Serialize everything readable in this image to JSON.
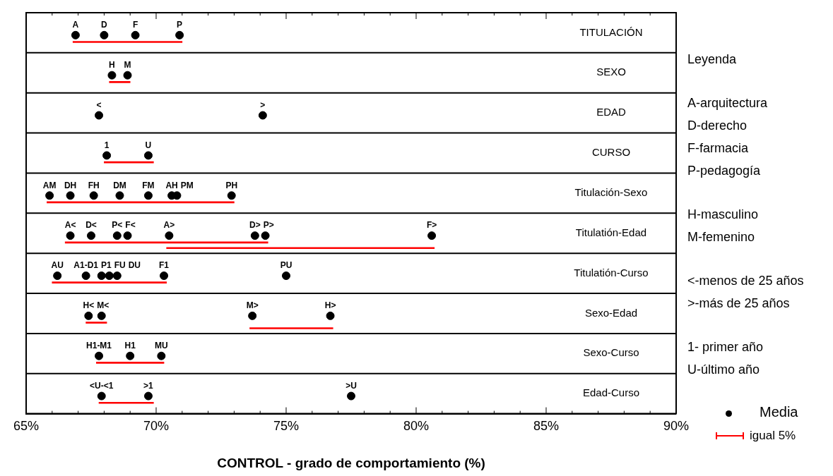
{
  "chart_data": {
    "type": "scatter",
    "orientation": "horizontal",
    "xlabel": "CONTROL - grado de comportamiento (%)",
    "legend_title": "Leyenda",
    "legend": "bottom right",
    "grid": false,
    "categories": [
      "TITULACIÓN",
      "SEXO",
      "EDAD",
      "CURSO",
      "Titulación-Sexo",
      "Titulatión-Edad",
      "Titulatión-Curso",
      "Sexo-Edad",
      "Sexo-Curso",
      "Edad-Curso"
    ],
    "xlim": [
      65,
      90
    ],
    "xticks": [
      {
        "value": 65,
        "label": "65%"
      },
      {
        "value": 66,
        "label": null
      },
      {
        "value": 67,
        "label": null
      },
      {
        "value": 68,
        "label": null
      },
      {
        "value": 69,
        "label": null
      },
      {
        "value": 70,
        "label": "70%"
      },
      {
        "value": 71,
        "label": null
      },
      {
        "value": 72,
        "label": null
      },
      {
        "value": 73,
        "label": null
      },
      {
        "value": 74,
        "label": null
      },
      {
        "value": 75,
        "label": "75%"
      },
      {
        "value": 76,
        "label": null
      },
      {
        "value": 77,
        "label": null
      },
      {
        "value": 78,
        "label": null
      },
      {
        "value": 79,
        "label": null
      },
      {
        "value": 80,
        "label": "80%"
      },
      {
        "value": 81,
        "label": null
      },
      {
        "value": 82,
        "label": null
      },
      {
        "value": 83,
        "label": null
      },
      {
        "value": 84,
        "label": null
      },
      {
        "value": 85,
        "label": "85%"
      },
      {
        "value": 86,
        "label": null
      },
      {
        "value": 87,
        "label": null
      },
      {
        "value": 88,
        "label": null
      },
      {
        "value": 89,
        "label": null
      },
      {
        "value": 90,
        "label": "90%"
      }
    ],
    "series": [
      {
        "name": "Media",
        "color": "#000000",
        "marker": "circle",
        "x": [
          "TITULACIÓN",
          "TITULACIÓN",
          "TITULACIÓN",
          "TITULACIÓN",
          "SEXO",
          "SEXO",
          "EDAD",
          "EDAD",
          "CURSO",
          "CURSO",
          "Titulación-Sexo",
          "Titulación-Sexo",
          "Titulación-Sexo",
          "Titulación-Sexo",
          "Titulación-Sexo",
          "Titulación-Sexo",
          "Titulación-Sexo",
          "Titulación-Sexo",
          "Titulatión-Edad",
          "Titulatión-Edad",
          "Titulatión-Edad",
          "Titulatión-Edad",
          "Titulatión-Edad",
          "Titulatión-Edad",
          "Titulatión-Edad",
          "Titulatión-Edad",
          "Titulatión-Curso",
          "Titulatión-Curso",
          "Titulatión-Curso",
          "Titulatión-Curso",
          "Titulatión-Curso",
          "Titulatión-Curso",
          "Titulatión-Curso",
          "Sexo-Edad",
          "Sexo-Edad",
          "Sexo-Edad",
          "Sexo-Edad",
          "Sexo-Curso",
          "Sexo-Curso",
          "Sexo-Curso",
          "Edad-Curso",
          "Edad-Curso",
          "Edad-Curso"
        ],
        "values": [
          66.9,
          68.0,
          69.2,
          70.9,
          68.3,
          68.9,
          67.8,
          74.1,
          68.1,
          69.7,
          65.9,
          66.7,
          67.6,
          68.6,
          69.7,
          70.6,
          70.8,
          72.9,
          66.7,
          67.5,
          68.5,
          68.9,
          70.5,
          73.8,
          74.2,
          80.6,
          66.2,
          67.3,
          67.9,
          68.2,
          68.5,
          70.3,
          75.0,
          67.4,
          67.9,
          73.7,
          76.7,
          67.8,
          69.0,
          70.2,
          67.9,
          69.7,
          77.5
        ]
      },
      {
        "name": "igual 5%",
        "type": "bar",
        "color": "#ff0000",
        "base": [
          66.8,
          68.2,
          null,
          68.0,
          65.8,
          66.5,
          66.0,
          67.3,
          67.7,
          67.8
        ],
        "values": [
          4.2,
          0.8,
          null,
          1.9,
          7.2,
          7.8,
          4.4,
          0.8,
          2.6,
          2.1
        ]
      },
      {
        "type": "bar",
        "color": "#ff0000",
        "base": [
          null,
          null,
          null,
          null,
          null,
          70.4,
          null,
          73.6,
          null,
          null
        ],
        "values": [
          null,
          null,
          null,
          null,
          null,
          10.3,
          null,
          3.2,
          null,
          null
        ]
      }
    ],
    "annotations": [
      "A-arquitectura",
      "D-derecho",
      "F-farmacia",
      "P-pedagogía",
      "H-masculino",
      "M-femenino",
      "<-menos de 25 años",
      ">-más de  25 años",
      "1- primer año",
      "U-último año",
      {
        "text": "A",
        "x": 66.9,
        "y": "TITULACIÓN"
      },
      {
        "text": "D",
        "x": 68.0,
        "y": "TITULACIÓN"
      },
      {
        "text": "F",
        "x": 69.2,
        "y": "TITULACIÓN"
      },
      {
        "text": "P",
        "x": 70.9,
        "y": "TITULACIÓN"
      },
      {
        "text": "H",
        "x": 68.3,
        "y": "SEXO"
      },
      {
        "text": "M",
        "x": 68.9,
        "y": "SEXO"
      },
      {
        "text": "<",
        "x": 67.8,
        "y": "EDAD"
      },
      {
        "text": ">",
        "x": 74.1,
        "y": "EDAD"
      },
      {
        "text": "1",
        "x": 68.1,
        "y": "CURSO"
      },
      {
        "text": "U",
        "x": 69.7,
        "y": "CURSO"
      },
      {
        "text": "AM",
        "x": 65.9,
        "y": "Titulación-Sexo"
      },
      {
        "text": "DH",
        "x": 66.7,
        "y": "Titulación-Sexo"
      },
      {
        "text": "FH",
        "x": 67.6,
        "y": "Titulación-Sexo"
      },
      {
        "text": "DM",
        "x": 68.6,
        "y": "Titulación-Sexo"
      },
      {
        "text": "FM",
        "x": 69.7,
        "y": "Titulación-Sexo"
      },
      {
        "text": "AH",
        "x": 70.6,
        "y": "Titulación-Sexo"
      },
      {
        "text": "PM",
        "x": 70.8,
        "y": "Titulación-Sexo"
      },
      {
        "text": "PH",
        "x": 72.9,
        "y": "Titulación-Sexo"
      },
      {
        "text": "A<",
        "x": 66.7,
        "y": "Titulatión-Edad"
      },
      {
        "text": "D<",
        "x": 67.5,
        "y": "Titulatión-Edad"
      },
      {
        "text": "P<",
        "x": 68.5,
        "y": "Titulatión-Edad"
      },
      {
        "text": "F<",
        "x": 68.9,
        "y": "Titulatión-Edad"
      },
      {
        "text": "A>",
        "x": 70.5,
        "y": "Titulatión-Edad"
      },
      {
        "text": "D>",
        "x": 73.8,
        "y": "Titulatión-Edad"
      },
      {
        "text": "P>",
        "x": 74.2,
        "y": "Titulatión-Edad"
      },
      {
        "text": "F>",
        "x": 80.6,
        "y": "Titulatión-Edad"
      },
      {
        "text": "AU",
        "x": 66.2,
        "y": "Titulatión-Curso"
      },
      {
        "text": "A1-D1",
        "x": 67.3,
        "y": "Titulatión-Curso"
      },
      {
        "text": "P1",
        "x": 67.9,
        "y": "Titulatión-Curso"
      },
      {
        "text": "FU",
        "x": 68.2,
        "y": "Titulatión-Curso"
      },
      {
        "text": "DU",
        "x": 68.5,
        "y": "Titulatión-Curso"
      },
      {
        "text": "F1",
        "x": 70.3,
        "y": "Titulatión-Curso"
      },
      {
        "text": "PU",
        "x": 75.0,
        "y": "Titulatión-Curso"
      },
      {
        "text": "H<",
        "x": 67.4,
        "y": "Sexo-Edad"
      },
      {
        "text": "M<",
        "x": 67.9,
        "y": "Sexo-Edad"
      },
      {
        "text": "M>",
        "x": 73.7,
        "y": "Sexo-Edad"
      },
      {
        "text": "H>",
        "x": 76.7,
        "y": "Sexo-Edad"
      },
      {
        "text": "H1-M1",
        "x": 67.8,
        "y": "Sexo-Curso"
      },
      {
        "text": "H1",
        "x": 69.0,
        "y": "Sexo-Curso"
      },
      {
        "text": "MU",
        "x": 70.2,
        "y": "Sexo-Curso"
      },
      {
        "text": "<U-<1",
        "x": 67.9,
        "y": "Edad-Curso"
      },
      {
        "text": ">1",
        "x": 69.7,
        "y": "Edad-Curso"
      },
      {
        "text": ">U",
        "x": 77.5,
        "y": "Edad-Curso"
      }
    ]
  }
}
